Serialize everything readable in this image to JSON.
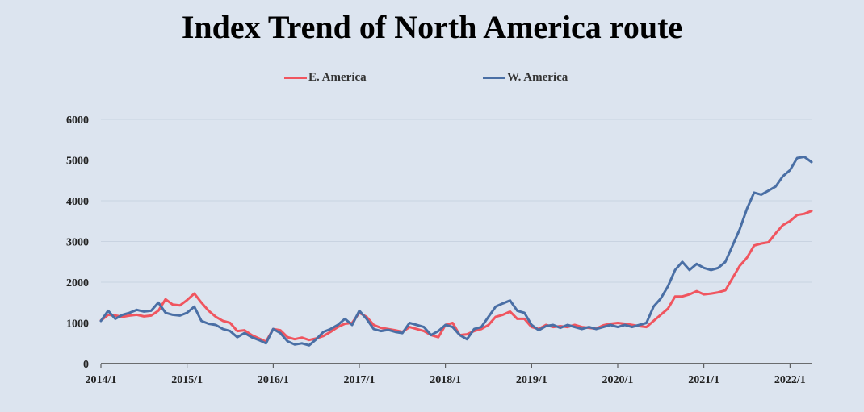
{
  "chart_data": {
    "type": "line",
    "title": "Index Trend of North America route",
    "xlabel": "",
    "ylabel": "",
    "ylim": [
      0,
      6000
    ],
    "yticks": [
      0,
      1000,
      2000,
      3000,
      4000,
      5000,
      6000
    ],
    "xticks": [
      "2014/1",
      "2015/1",
      "2016/1",
      "2017/1",
      "2018/1",
      "2019/1",
      "2020/1",
      "2021/1",
      "2022/1"
    ],
    "xlim": [
      "2014/1",
      "2022/4"
    ],
    "grid": true,
    "legend_position": "top-center",
    "series": [
      {
        "name": "E. America",
        "color": "#f0555f",
        "points": [
          [
            "2014/1",
            1060
          ],
          [
            "2014/2",
            1200
          ],
          [
            "2014/3",
            1180
          ],
          [
            "2014/4",
            1150
          ],
          [
            "2014/5",
            1180
          ],
          [
            "2014/6",
            1200
          ],
          [
            "2014/7",
            1160
          ],
          [
            "2014/8",
            1180
          ],
          [
            "2014/9",
            1300
          ],
          [
            "2014/10",
            1580
          ],
          [
            "2014/11",
            1450
          ],
          [
            "2014/12",
            1430
          ],
          [
            "2015/1",
            1560
          ],
          [
            "2015/2",
            1720
          ],
          [
            "2015/3",
            1500
          ],
          [
            "2015/4",
            1300
          ],
          [
            "2015/5",
            1150
          ],
          [
            "2015/6",
            1050
          ],
          [
            "2015/7",
            1000
          ],
          [
            "2015/8",
            800
          ],
          [
            "2015/9",
            820
          ],
          [
            "2015/10",
            700
          ],
          [
            "2015/11",
            620
          ],
          [
            "2015/12",
            540
          ],
          [
            "2016/1",
            850
          ],
          [
            "2016/2",
            820
          ],
          [
            "2016/3",
            650
          ],
          [
            "2016/4",
            600
          ],
          [
            "2016/5",
            640
          ],
          [
            "2016/6",
            580
          ],
          [
            "2016/7",
            620
          ],
          [
            "2016/8",
            680
          ],
          [
            "2016/9",
            780
          ],
          [
            "2016/10",
            900
          ],
          [
            "2016/11",
            980
          ],
          [
            "2016/12",
            1000
          ],
          [
            "2017/1",
            1250
          ],
          [
            "2017/2",
            1150
          ],
          [
            "2017/3",
            950
          ],
          [
            "2017/4",
            880
          ],
          [
            "2017/5",
            850
          ],
          [
            "2017/6",
            820
          ],
          [
            "2017/7",
            780
          ],
          [
            "2017/8",
            900
          ],
          [
            "2017/9",
            850
          ],
          [
            "2017/10",
            800
          ],
          [
            "2017/11",
            700
          ],
          [
            "2017/12",
            650
          ],
          [
            "2018/1",
            950
          ],
          [
            "2018/2",
            1000
          ],
          [
            "2018/3",
            700
          ],
          [
            "2018/4",
            720
          ],
          [
            "2018/5",
            800
          ],
          [
            "2018/6",
            850
          ],
          [
            "2018/7",
            950
          ],
          [
            "2018/8",
            1150
          ],
          [
            "2018/9",
            1200
          ],
          [
            "2018/10",
            1280
          ],
          [
            "2018/11",
            1100
          ],
          [
            "2018/12",
            1100
          ],
          [
            "2019/1",
            900
          ],
          [
            "2019/2",
            850
          ],
          [
            "2019/3",
            950
          ],
          [
            "2019/4",
            900
          ],
          [
            "2019/5",
            920
          ],
          [
            "2019/6",
            900
          ],
          [
            "2019/7",
            950
          ],
          [
            "2019/8",
            900
          ],
          [
            "2019/9",
            880
          ],
          [
            "2019/10",
            860
          ],
          [
            "2019/11",
            940
          ],
          [
            "2019/12",
            980
          ],
          [
            "2020/1",
            1000
          ],
          [
            "2020/2",
            980
          ],
          [
            "2020/3",
            950
          ],
          [
            "2020/4",
            920
          ],
          [
            "2020/5",
            900
          ],
          [
            "2020/6",
            1050
          ],
          [
            "2020/7",
            1200
          ],
          [
            "2020/8",
            1350
          ],
          [
            "2020/9",
            1650
          ],
          [
            "2020/10",
            1650
          ],
          [
            "2020/11",
            1700
          ],
          [
            "2020/12",
            1780
          ],
          [
            "2021/1",
            1700
          ],
          [
            "2021/2",
            1720
          ],
          [
            "2021/3",
            1750
          ],
          [
            "2021/4",
            1800
          ],
          [
            "2021/5",
            2100
          ],
          [
            "2021/6",
            2400
          ],
          [
            "2021/7",
            2600
          ],
          [
            "2021/8",
            2900
          ],
          [
            "2021/9",
            2950
          ],
          [
            "2021/10",
            2980
          ],
          [
            "2021/11",
            3200
          ],
          [
            "2021/12",
            3400
          ],
          [
            "2022/1",
            3500
          ],
          [
            "2022/2",
            3650
          ],
          [
            "2022/3",
            3680
          ],
          [
            "2022/4",
            3750
          ]
        ]
      },
      {
        "name": "W. America",
        "color": "#4a6fa5",
        "points": [
          [
            "2014/1",
            1050
          ],
          [
            "2014/2",
            1300
          ],
          [
            "2014/3",
            1100
          ],
          [
            "2014/4",
            1200
          ],
          [
            "2014/5",
            1250
          ],
          [
            "2014/6",
            1320
          ],
          [
            "2014/7",
            1280
          ],
          [
            "2014/8",
            1300
          ],
          [
            "2014/9",
            1500
          ],
          [
            "2014/10",
            1250
          ],
          [
            "2014/11",
            1200
          ],
          [
            "2014/12",
            1180
          ],
          [
            "2015/1",
            1250
          ],
          [
            "2015/2",
            1400
          ],
          [
            "2015/3",
            1050
          ],
          [
            "2015/4",
            980
          ],
          [
            "2015/5",
            950
          ],
          [
            "2015/6",
            850
          ],
          [
            "2015/7",
            800
          ],
          [
            "2015/8",
            650
          ],
          [
            "2015/9",
            750
          ],
          [
            "2015/10",
            650
          ],
          [
            "2015/11",
            580
          ],
          [
            "2015/12",
            500
          ],
          [
            "2016/1",
            850
          ],
          [
            "2016/2",
            750
          ],
          [
            "2016/3",
            550
          ],
          [
            "2016/4",
            470
          ],
          [
            "2016/5",
            500
          ],
          [
            "2016/6",
            450
          ],
          [
            "2016/7",
            600
          ],
          [
            "2016/8",
            780
          ],
          [
            "2016/9",
            850
          ],
          [
            "2016/10",
            950
          ],
          [
            "2016/11",
            1100
          ],
          [
            "2016/12",
            950
          ],
          [
            "2017/1",
            1300
          ],
          [
            "2017/2",
            1100
          ],
          [
            "2017/3",
            850
          ],
          [
            "2017/4",
            800
          ],
          [
            "2017/5",
            830
          ],
          [
            "2017/6",
            780
          ],
          [
            "2017/7",
            750
          ],
          [
            "2017/8",
            1000
          ],
          [
            "2017/9",
            950
          ],
          [
            "2017/10",
            900
          ],
          [
            "2017/11",
            700
          ],
          [
            "2017/12",
            800
          ],
          [
            "2018/1",
            950
          ],
          [
            "2018/2",
            900
          ],
          [
            "2018/3",
            700
          ],
          [
            "2018/4",
            600
          ],
          [
            "2018/5",
            850
          ],
          [
            "2018/6",
            900
          ],
          [
            "2018/7",
            1150
          ],
          [
            "2018/8",
            1400
          ],
          [
            "2018/9",
            1480
          ],
          [
            "2018/10",
            1550
          ],
          [
            "2018/11",
            1300
          ],
          [
            "2018/12",
            1250
          ],
          [
            "2019/1",
            950
          ],
          [
            "2019/2",
            820
          ],
          [
            "2019/3",
            920
          ],
          [
            "2019/4",
            950
          ],
          [
            "2019/5",
            880
          ],
          [
            "2019/6",
            950
          ],
          [
            "2019/7",
            900
          ],
          [
            "2019/8",
            850
          ],
          [
            "2019/9",
            900
          ],
          [
            "2019/10",
            850
          ],
          [
            "2019/11",
            900
          ],
          [
            "2019/12",
            950
          ],
          [
            "2020/1",
            900
          ],
          [
            "2020/2",
            950
          ],
          [
            "2020/3",
            900
          ],
          [
            "2020/4",
            950
          ],
          [
            "2020/5",
            1000
          ],
          [
            "2020/6",
            1400
          ],
          [
            "2020/7",
            1600
          ],
          [
            "2020/8",
            1900
          ],
          [
            "2020/9",
            2300
          ],
          [
            "2020/10",
            2500
          ],
          [
            "2020/11",
            2300
          ],
          [
            "2020/12",
            2450
          ],
          [
            "2021/1",
            2350
          ],
          [
            "2021/2",
            2300
          ],
          [
            "2021/3",
            2350
          ],
          [
            "2021/4",
            2500
          ],
          [
            "2021/5",
            2900
          ],
          [
            "2021/6",
            3300
          ],
          [
            "2021/7",
            3800
          ],
          [
            "2021/8",
            4200
          ],
          [
            "2021/9",
            4150
          ],
          [
            "2021/10",
            4250
          ],
          [
            "2021/11",
            4350
          ],
          [
            "2021/12",
            4600
          ],
          [
            "2022/1",
            4750
          ],
          [
            "2022/2",
            5050
          ],
          [
            "2022/3",
            5080
          ],
          [
            "2022/4",
            4950
          ]
        ]
      }
    ]
  }
}
